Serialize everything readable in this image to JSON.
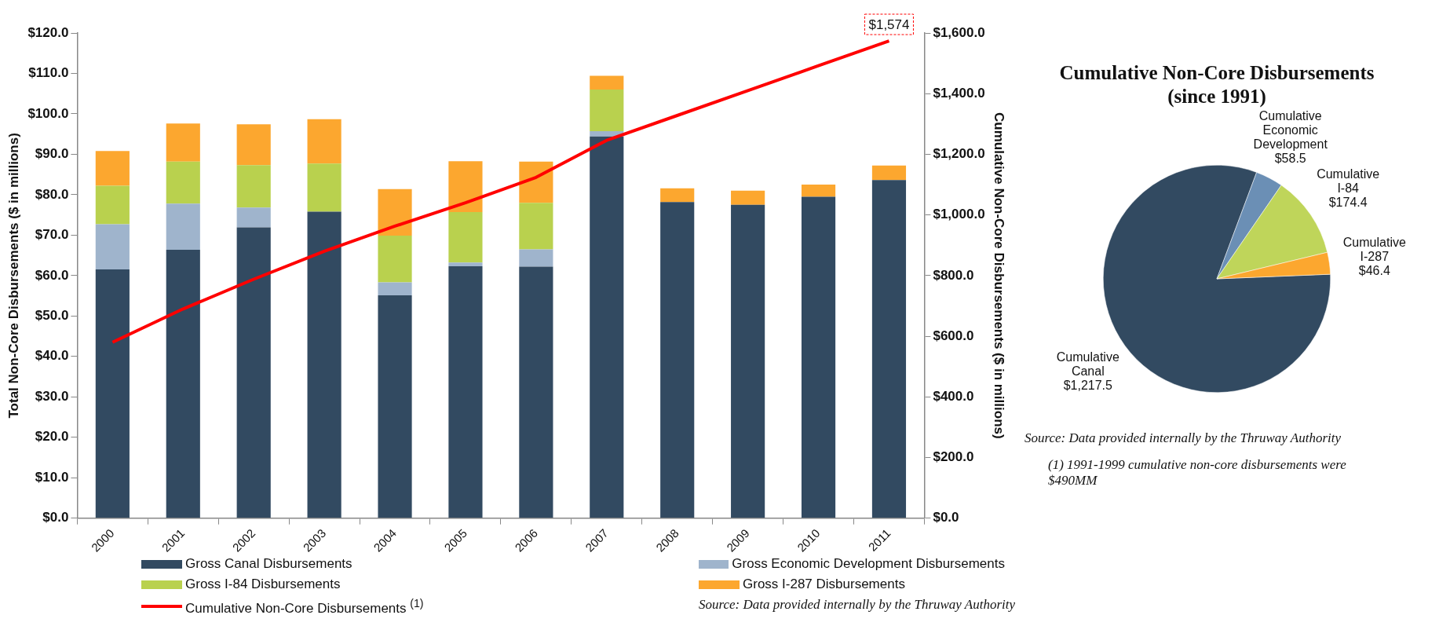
{
  "chart_data": [
    {
      "type": "bar",
      "stacked": true,
      "categories": [
        "2000",
        "2001",
        "2002",
        "2003",
        "2004",
        "2005",
        "2006",
        "2007",
        "2008",
        "2009",
        "2010",
        "2011"
      ],
      "ylabel": "Total Non-Core Disbursements ($ in millions)",
      "y2label": "Cumulative Non-Core Disbursements ($ in millions)",
      "ylim": [
        0,
        120
      ],
      "yticks": [
        {
          "value": 0,
          "label": "$0.0"
        },
        {
          "value": 10,
          "label": "$10.0"
        },
        {
          "value": 20,
          "label": "$20.0"
        },
        {
          "value": 30,
          "label": "$30.0"
        },
        {
          "value": 40,
          "label": "$40.0"
        },
        {
          "value": 50,
          "label": "$50.0"
        },
        {
          "value": 60,
          "label": "$60.0"
        },
        {
          "value": 70,
          "label": "$70.0"
        },
        {
          "value": 80,
          "label": "$80.0"
        },
        {
          "value": 90,
          "label": "$90.0"
        },
        {
          "value": 100,
          "label": "$100.0"
        },
        {
          "value": 110,
          "label": "$110.0"
        },
        {
          "value": 120,
          "label": "$120.0"
        }
      ],
      "y2lim": [
        0,
        1600
      ],
      "y2ticks": [
        {
          "value": 0,
          "label": "$0.0"
        },
        {
          "value": 200,
          "label": "$200.0"
        },
        {
          "value": 400,
          "label": "$400.0"
        },
        {
          "value": 600,
          "label": "$600.0"
        },
        {
          "value": 800,
          "label": "$800.0"
        },
        {
          "value": 1000,
          "label": "$1,000.0"
        },
        {
          "value": 1200,
          "label": "$1,200.0"
        },
        {
          "value": 1400,
          "label": "$1,400.0"
        },
        {
          "value": 1600,
          "label": "$1,600.0"
        }
      ],
      "series": [
        {
          "name": "Gross Canal Disbursements",
          "color": "#324a61",
          "values": [
            61.5,
            66.4,
            71.9,
            75.8,
            55.1,
            62.3,
            62.2,
            94.4,
            78.2,
            77.5,
            79.5,
            83.6
          ]
        },
        {
          "name": "Gross Economic Development Disbursements",
          "color": "#9fb4cc",
          "values": [
            11.2,
            11.4,
            4.9,
            0,
            3.2,
            0.9,
            4.3,
            1.3,
            0,
            0,
            0,
            0
          ]
        },
        {
          "name": "Gross I-84 Disbursements",
          "color": "#b9d14e",
          "values": [
            9.5,
            10.4,
            10.5,
            11.9,
            11.6,
            12.5,
            11.5,
            10.3,
            0,
            0,
            0,
            0
          ]
        },
        {
          "name": "Gross I-287 Disbursements",
          "color": "#fca72f",
          "values": [
            8.6,
            9.4,
            10.1,
            11.0,
            11.5,
            12.6,
            10.2,
            3.4,
            3.4,
            3.5,
            3.0,
            3.6
          ]
        },
        {
          "name": "Cumulative Non-Core Disbursements $^{(1)}$",
          "type": "line",
          "axis": "y2",
          "color": "#ff0000",
          "marker": "none",
          "values": [
            580,
            690,
            788,
            880,
            963,
            1040,
            1124,
            1246,
            1328,
            1410,
            1492,
            1574
          ],
          "value_labels": [
            null,
            null,
            null,
            null,
            null,
            null,
            null,
            null,
            null,
            null,
            null,
            "$1,574"
          ]
        }
      ],
      "legend": "bottom",
      "grid": false,
      "annotations": [
        "Source:  Data provided internally by the Thruway Authority"
      ]
    },
    {
      "type": "pie",
      "title": "Cumulative Non-Core Disbursements (since 1991)",
      "categories": [
        "Cumulative Canal",
        "Cumulative Economic Development",
        "Cumulative I-84",
        "Cumulative I-287"
      ],
      "values": [
        1217.5,
        58.5,
        174.4,
        46.4
      ],
      "colors": [
        "#324a61",
        "#6b8fb5",
        "#bfd55a",
        "#fca72f"
      ],
      "value_labels": [
        "$1,217.5",
        "$58.5",
        "$174.4",
        "$46.4"
      ],
      "annotations": [
        "Source:  Data provided internally by the Thruway Authority",
        "(1)    1991-1999 cumulative non-core disbursements were  $490MM"
      ]
    }
  ]
}
